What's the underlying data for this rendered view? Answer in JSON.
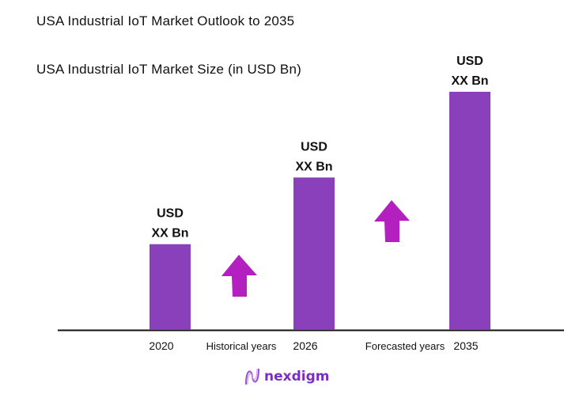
{
  "header": {
    "title": "USA Industrial IoT  Market Outlook to 2035",
    "subtitle": "USA Industrial IoT Market Size (in USD Bn)"
  },
  "chart_data": {
    "type": "bar",
    "title": "USA Industrial IoT Market Size (in USD Bn)",
    "categories": [
      "2020",
      "2026",
      "2035"
    ],
    "values_relative_percent_of_max": [
      36,
      64,
      100
    ],
    "data_labels": [
      [
        "USD",
        "XX Bn"
      ],
      [
        "USD",
        "XX Bn"
      ],
      [
        "USD",
        "XX Bn"
      ]
    ],
    "period_labels": [
      "Historical years",
      "Forecasted years"
    ],
    "bar_color": "#8a40bb",
    "arrow_color": "#b41fbf",
    "grid": false,
    "yaxis_shown": false
  },
  "footer": {
    "logo_text": "nexdigm",
    "logo_color": "#7a2fc0"
  }
}
